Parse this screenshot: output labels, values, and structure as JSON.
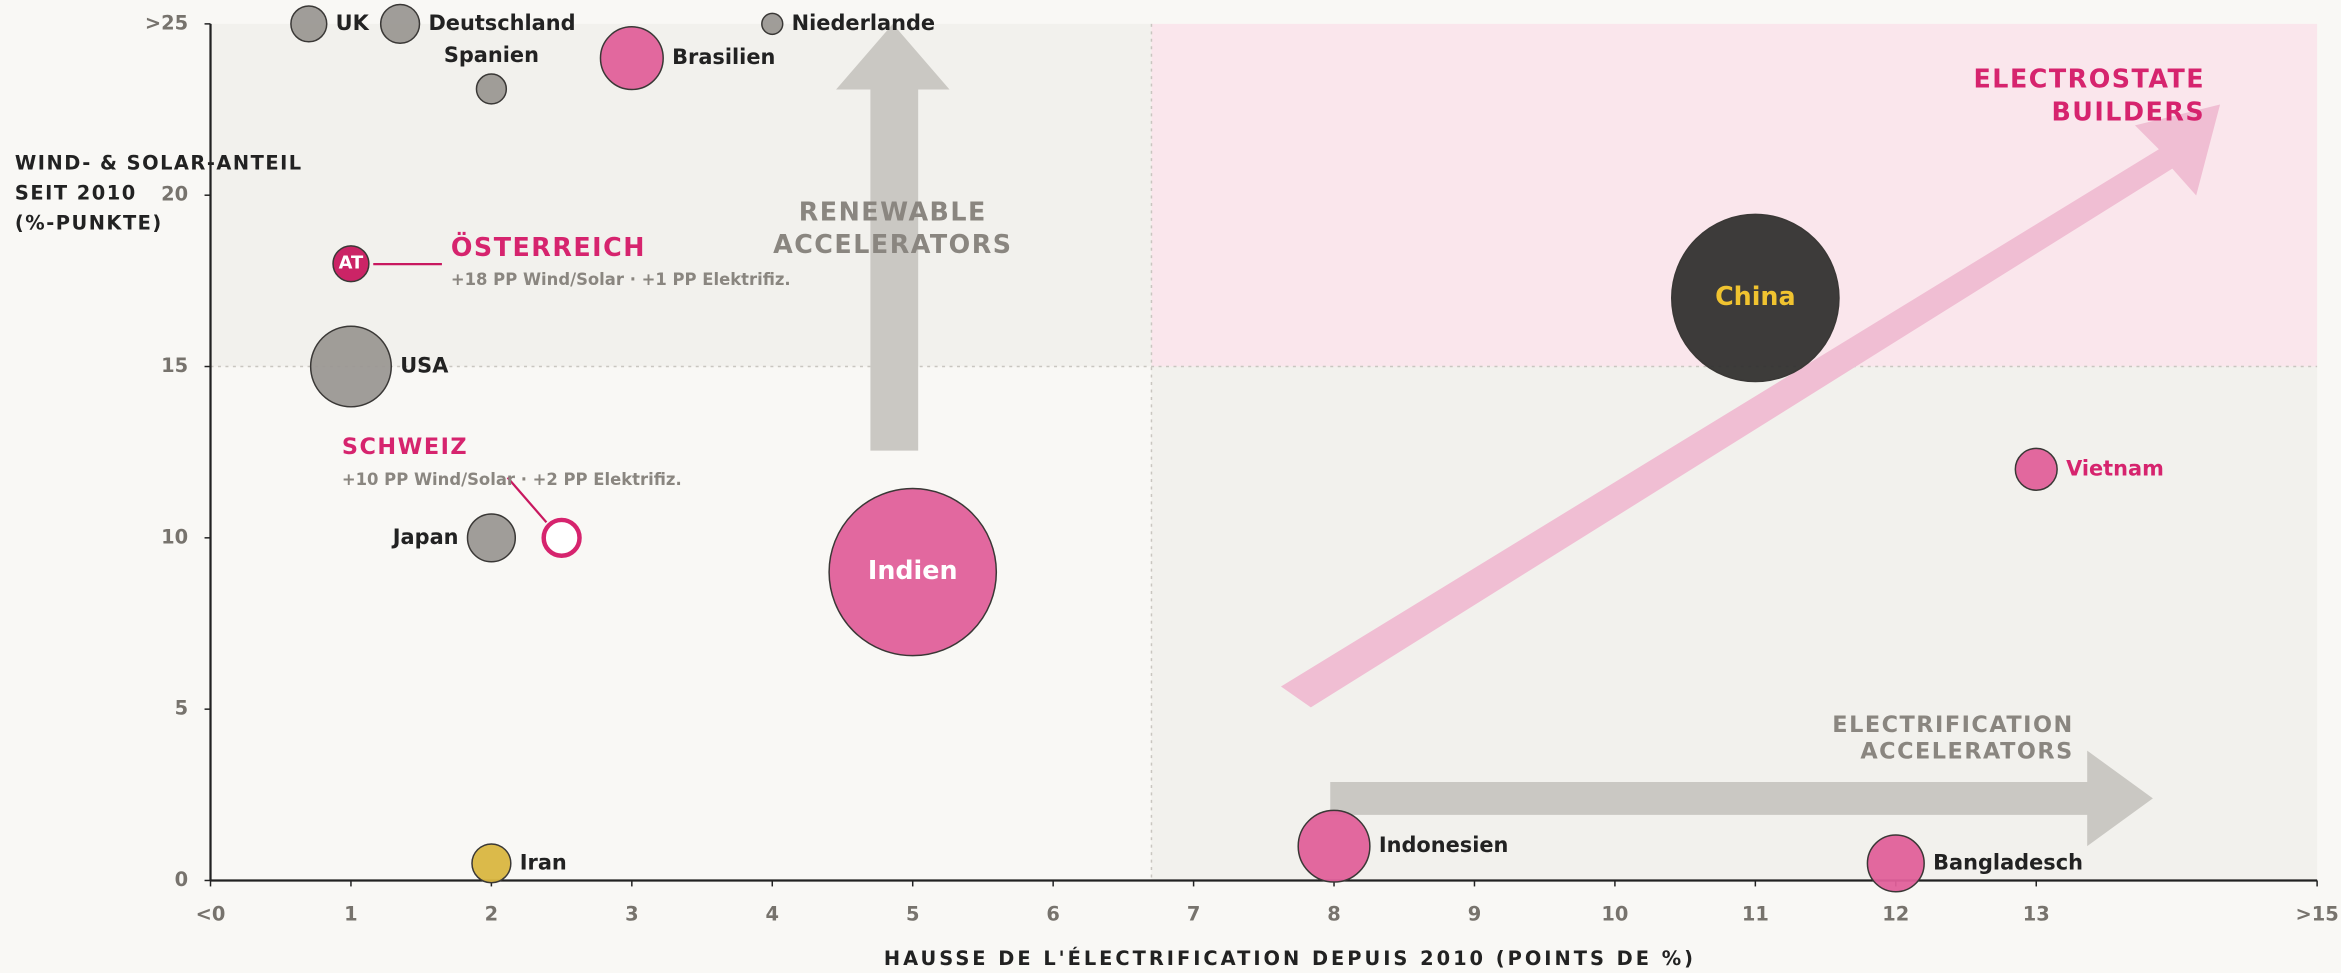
{
  "chart_data": {
    "type": "scatter",
    "xlabel": "HAUSSE DE L'ÉLECTRIFICATION DEPUIS 2010 (POINTS DE %)",
    "ylabel": [
      "WIND- & SOLAR-ANTEIL",
      "SEIT 2010",
      "(%-PUNKTE)"
    ],
    "labels": [
      "UK",
      "Deutschland",
      "Niederlande",
      "Spanien",
      "Brasilien",
      "AT",
      "USA",
      "Japan",
      null,
      "Indien",
      "Iran",
      "China",
      "Vietnam",
      "Indonesien",
      "Bangladesch"
    ],
    "x": [
      0.7,
      1.35,
      4,
      2,
      3,
      1,
      1,
      2,
      2.5,
      5,
      2,
      11,
      13,
      8,
      12
    ],
    "values": [
      25,
      25,
      25,
      23.1,
      24,
      18,
      15,
      10,
      10,
      9,
      0.5,
      17,
      12,
      1,
      0.5
    ],
    "sizes": [
      12,
      13,
      7,
      10,
      21,
      12,
      27,
      16,
      12,
      56,
      13,
      56,
      14,
      24,
      19
    ],
    "colors": [
      "#9b9893",
      "#9b9893",
      "#9b9893",
      "#9b9893",
      "#e0609a",
      "#c8185f",
      "#9b9893",
      "#9b9893",
      "#d6246e",
      "#e0609a",
      "#d9b640",
      "#333230",
      "#e0609a",
      "#e0609a",
      "#e0609a"
    ],
    "outline_only": [
      8
    ],
    "xlim": [
      0,
      15
    ],
    "ylim": [
      0,
      25
    ],
    "xticks": [
      {
        "value": 0,
        "label": "<0"
      },
      1,
      2,
      3,
      4,
      5,
      6,
      7,
      8,
      9,
      10,
      11,
      12,
      13,
      {
        "value": 15,
        "label": ">15"
      }
    ],
    "yticks": [
      0,
      5,
      10,
      15,
      20,
      {
        "value": 25,
        "label": ">25"
      }
    ],
    "dividers": {
      "x": 6.7,
      "y": 15
    },
    "annotations": [
      "RENEWABLE",
      "ACCELERATORS",
      "ELECTROSTATE",
      "BUILDERS",
      "ELECTRIFICATION",
      "ACCELERATORS",
      "ÖSTERREICH",
      "+18 PP Wind/Solar · +1 PP Elektrifiz.",
      "SCHWEIZ",
      "+10 PP Wind/Solar · +2 PP Elektrifiz."
    ]
  }
}
